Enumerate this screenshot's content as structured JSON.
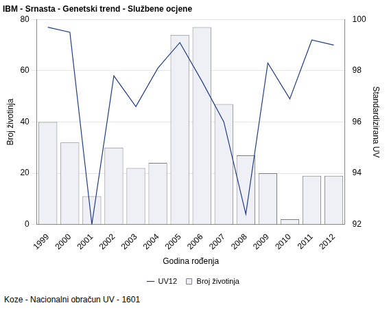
{
  "chart_data": {
    "type": "bar",
    "title": "IBM - Srnasta - Genetski trend - Službene ocjene",
    "x_label": "Godina rođenja",
    "y_label": "Broj životinja",
    "y2_label": "Standardizirana UV",
    "footer": "Koze - Nacionalni obračun UV - 1601",
    "categories": [
      "1999",
      "2000",
      "2001",
      "2002",
      "2003",
      "2004",
      "2005",
      "2006",
      "2007",
      "2008",
      "2009",
      "2010",
      "2011",
      "2012"
    ],
    "series": [
      {
        "name": "Broj životinja",
        "type": "bar",
        "color": "#eef0f5",
        "values": [
          40,
          32,
          11,
          30,
          22,
          24,
          74,
          77,
          47,
          27,
          20,
          2,
          19,
          19
        ]
      },
      {
        "name": "UV12",
        "type": "line",
        "axis": "y2",
        "color": "#1f3a8a",
        "values": [
          99.7,
          99.5,
          92.0,
          97.8,
          96.6,
          98.1,
          99.1,
          97.6,
          96.0,
          92.4,
          98.3,
          96.9,
          99.2,
          99.0
        ]
      }
    ],
    "ylim": [
      0,
      80
    ],
    "yticks": [
      0,
      20,
      40,
      60,
      80
    ],
    "y2lim": [
      92,
      100
    ],
    "y2ticks": [
      92,
      94,
      96,
      98,
      100
    ],
    "grid": true,
    "legend": "bottom"
  }
}
